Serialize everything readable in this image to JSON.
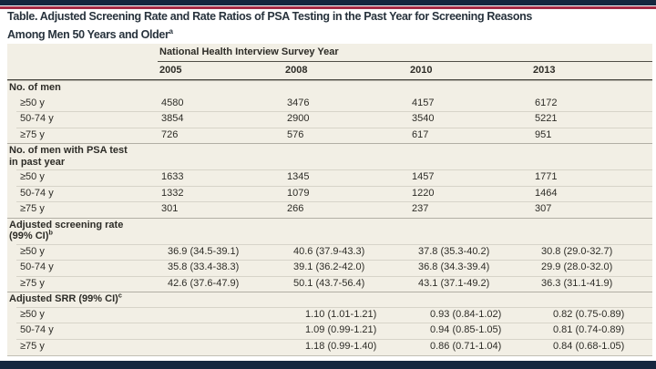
{
  "page": {
    "title_line1": "Table. Adjusted Screening Rate and Rate Ratios of PSA Testing in the Past Year for Screening Reasons",
    "title_line2": "Among Men 50 Years and Older",
    "title_footnote_marker": "a"
  },
  "colors": {
    "top_bar_navy": "#15273f",
    "accent_red": "#a62b45",
    "panel_background": "#f2efe5",
    "text": "#2d2c27"
  },
  "table": {
    "column_group_header": "National Health Interview Survey Year",
    "years": [
      "2005",
      "2008",
      "2010",
      "2013"
    ],
    "sections": [
      {
        "header": "No. of men",
        "rows": [
          {
            "label": "≥50 y",
            "values": [
              "4580",
              "3476",
              "4157",
              "6172"
            ]
          },
          {
            "label": "50-74 y",
            "values": [
              "3854",
              "2900",
              "3540",
              "5221"
            ]
          },
          {
            "label": "≥75 y",
            "values": [
              "726",
              "576",
              "617",
              "951"
            ]
          }
        ]
      },
      {
        "header": "No. of men with PSA test",
        "header_line2": "in past year",
        "rows": [
          {
            "label": "≥50 y",
            "values": [
              "1633",
              "1345",
              "1457",
              "1771"
            ]
          },
          {
            "label": "50-74 y",
            "values": [
              "1332",
              "1079",
              "1220",
              "1464"
            ]
          },
          {
            "label": "≥75 y",
            "values": [
              "301",
              "266",
              "237",
              "307"
            ]
          }
        ]
      },
      {
        "header": "Adjusted screening rate",
        "header_line2": "(99% CI)",
        "footnote_marker": "b",
        "rows": [
          {
            "label": "≥50 y",
            "values": [
              "36.9 (34.5-39.1)",
              "40.6 (37.9-43.3)",
              "37.8 (35.3-40.2)",
              "30.8 (29.0-32.7)"
            ]
          },
          {
            "label": "50-74 y",
            "values": [
              "35.8 (33.4-38.3)",
              "39.1 (36.2-42.0)",
              "36.8 (34.3-39.4)",
              "29.9 (28.0-32.0)"
            ]
          },
          {
            "label": "≥75 y",
            "values": [
              "42.6 (37.6-47.9)",
              "50.1 (43.7-56.4)",
              "43.1 (37.1-49.2)",
              "36.3 (31.1-41.9)"
            ]
          }
        ]
      },
      {
        "header": "Adjusted SRR (99% CI)",
        "footnote_marker": "c",
        "rows": [
          {
            "label": "≥50 y",
            "values": [
              "",
              "1.10 (1.01-1.21)",
              "0.93 (0.84-1.02)",
              "0.82 (0.75-0.89)"
            ]
          },
          {
            "label": "50-74 y",
            "values": [
              "",
              "1.09 (0.99-1.21)",
              "0.94 (0.85-1.05)",
              "0.81 (0.74-0.89)"
            ]
          },
          {
            "label": "≥75 y",
            "values": [
              "",
              "1.18 (0.99-1.40)",
              "0.86 (0.71-1.04)",
              "0.84 (0.68-1.05)"
            ]
          }
        ]
      }
    ]
  }
}
